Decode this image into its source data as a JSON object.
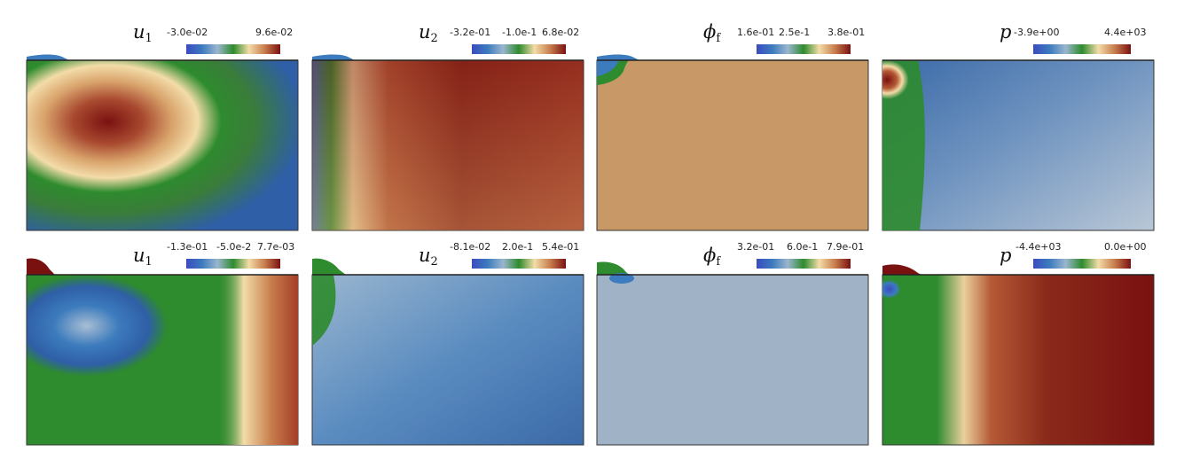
{
  "colormap": {
    "stops": [
      "#3b4cc0",
      "#3c7bbd",
      "#9ab6cf",
      "#2e8b2e",
      "#f3dca8",
      "#c87e4e",
      "#7a1111"
    ]
  },
  "panels": [
    {
      "row": 0,
      "col": 0,
      "symbol": "u",
      "subscript": "1",
      "ticks": [
        "-3.0e-02",
        "9.6e-02"
      ]
    },
    {
      "row": 0,
      "col": 1,
      "symbol": "u",
      "subscript": "2",
      "ticks": [
        "-3.2e-01",
        "-1.0e-1",
        "6.8e-02"
      ]
    },
    {
      "row": 0,
      "col": 2,
      "symbol": "ϕ",
      "subscript": "f",
      "ticks": [
        "1.6e-01",
        "2.5e-1",
        "3.8e-01"
      ]
    },
    {
      "row": 0,
      "col": 3,
      "symbol": "p",
      "subscript": "",
      "ticks": [
        "-3.9e+00",
        "4.4e+03"
      ]
    },
    {
      "row": 1,
      "col": 0,
      "symbol": "u",
      "subscript": "1",
      "ticks": [
        "-1.3e-01",
        "-5.0e-2",
        "7.7e-03"
      ]
    },
    {
      "row": 1,
      "col": 1,
      "symbol": "u",
      "subscript": "2",
      "ticks": [
        "-8.1e-02",
        "2.0e-1",
        "5.4e-01"
      ]
    },
    {
      "row": 1,
      "col": 2,
      "symbol": "ϕ",
      "subscript": "f",
      "ticks": [
        "3.2e-01",
        "6.0e-1",
        "7.9e-01"
      ]
    },
    {
      "row": 1,
      "col": 3,
      "symbol": "p",
      "subscript": "",
      "ticks": [
        "-4.4e+03",
        "0.0e+00"
      ]
    }
  ]
}
